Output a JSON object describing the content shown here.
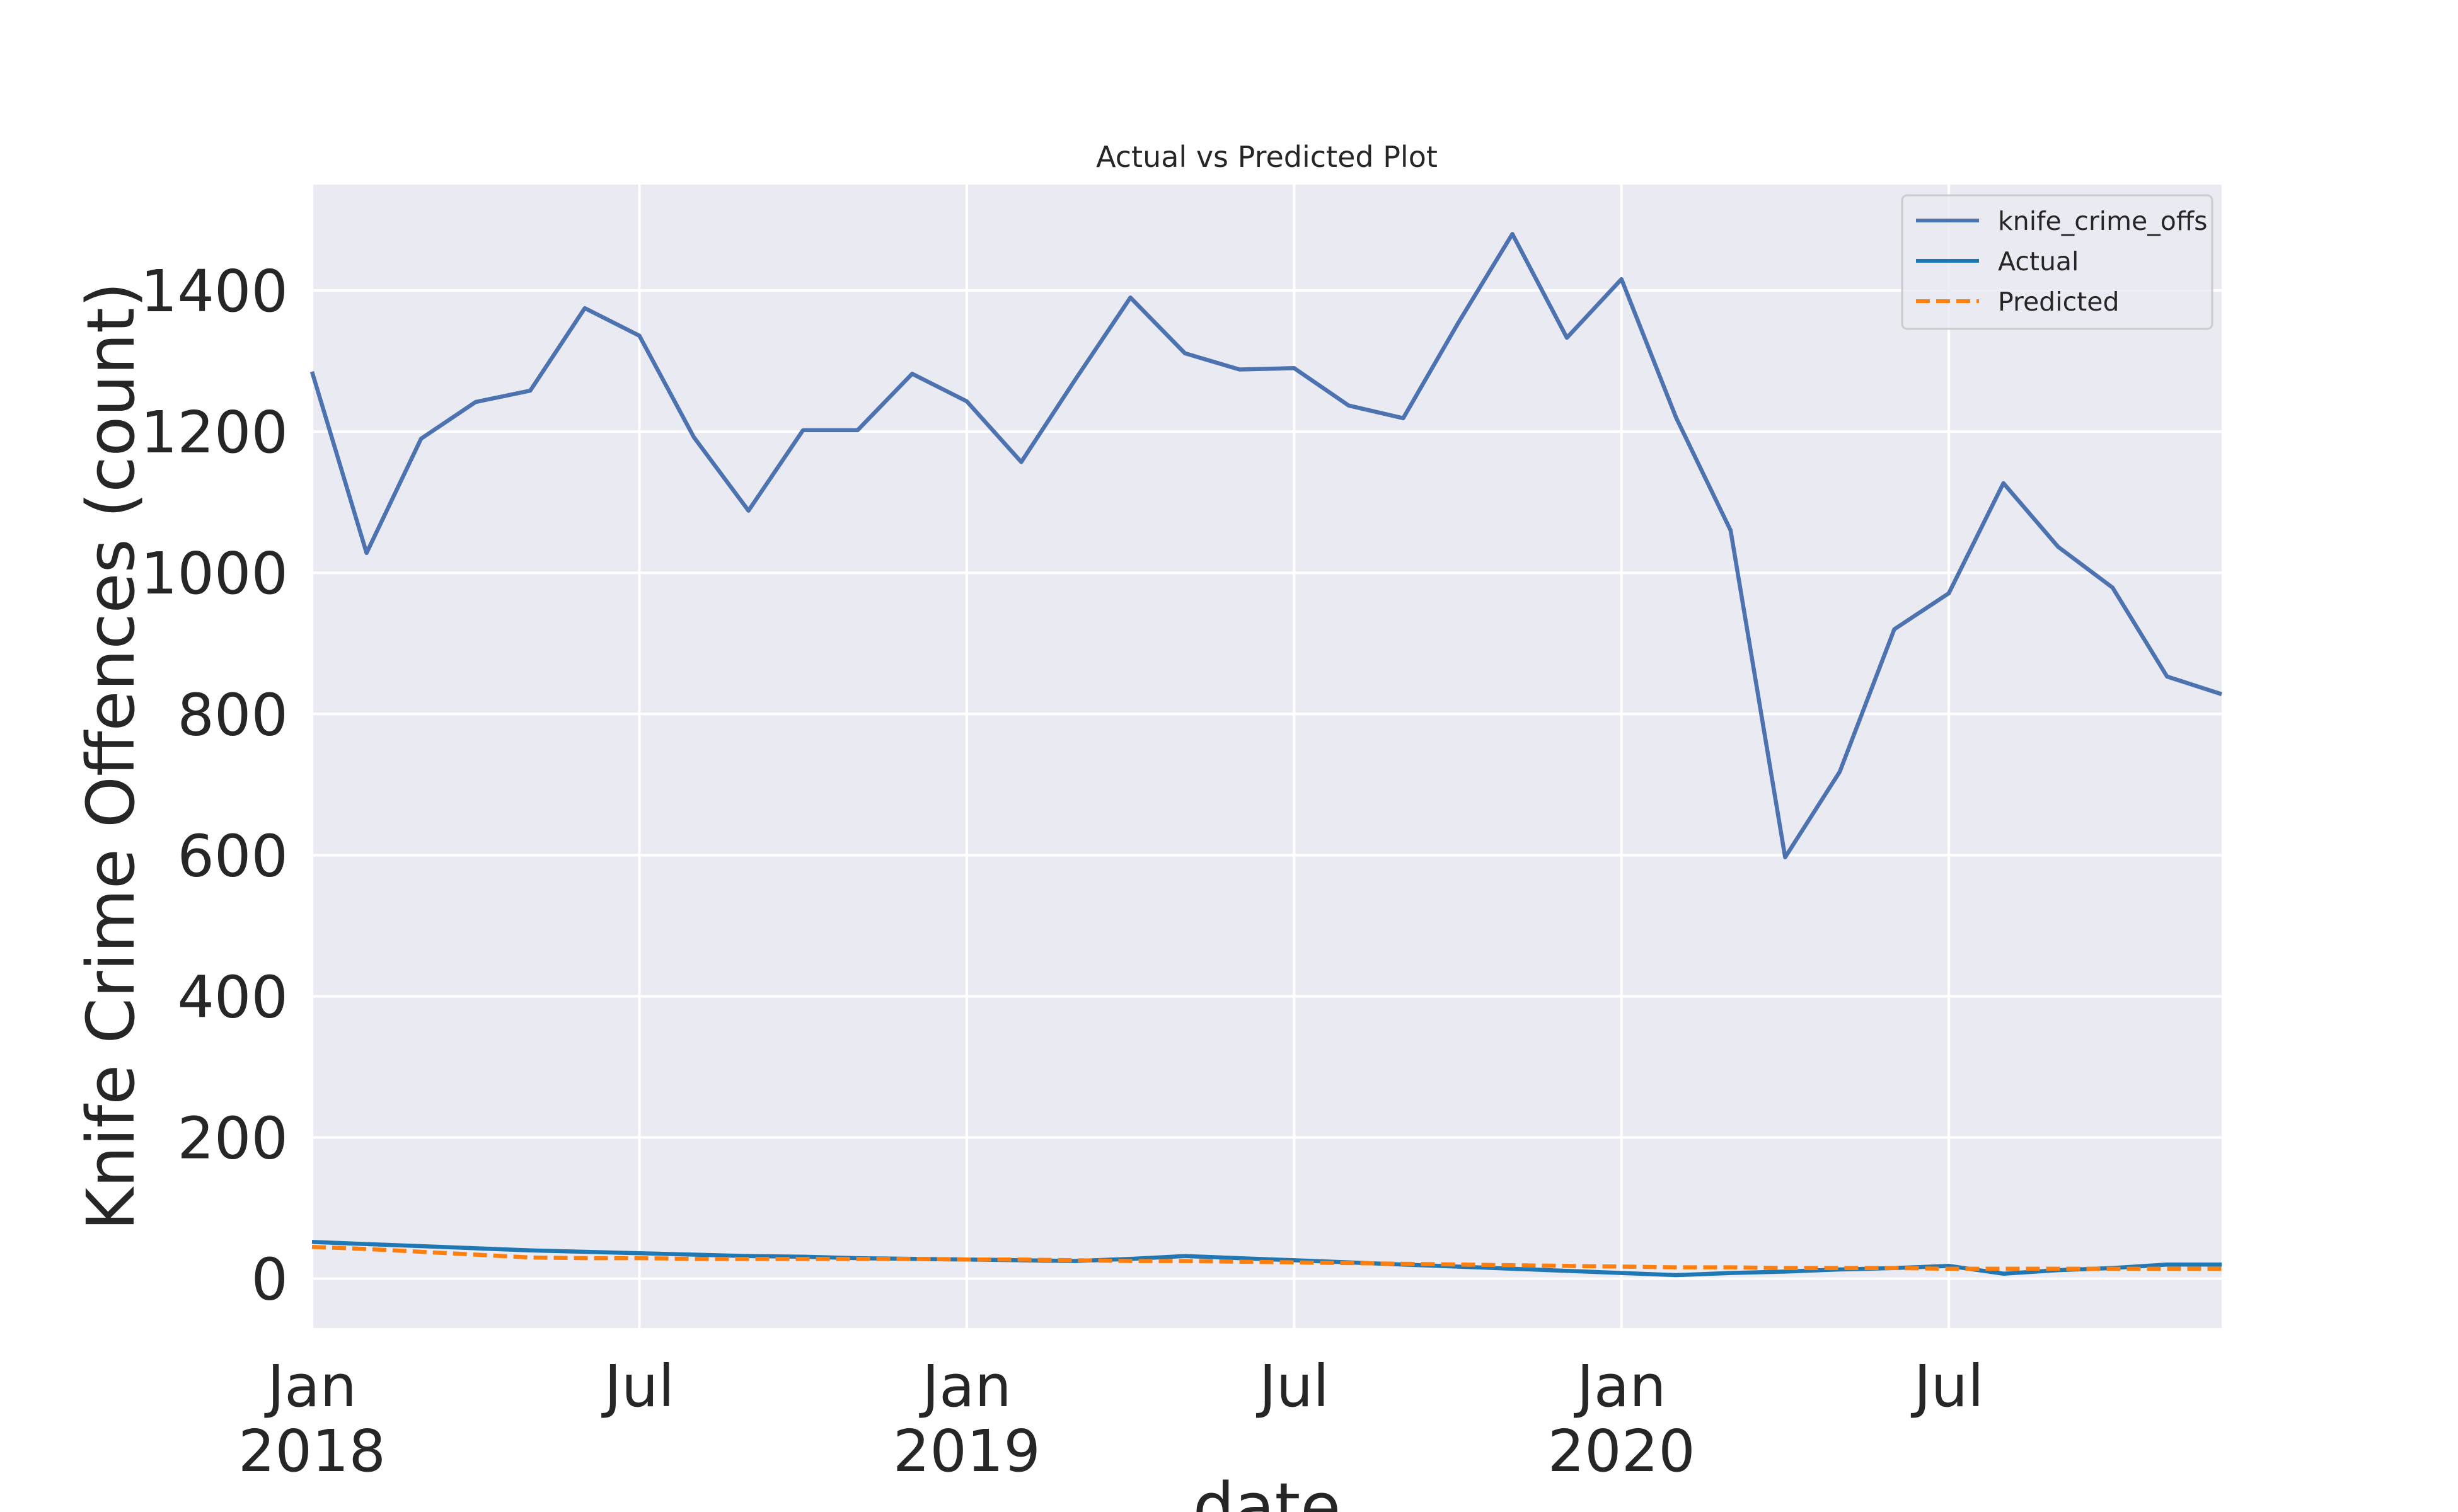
{
  "chart_data": {
    "type": "line",
    "title": "Actual vs Predicted Plot",
    "xlabel": "date",
    "ylabel": "Knife Crime Offences (count)",
    "grid": true,
    "legend_placement": "top-right",
    "ylim": [
      -70,
      1550
    ],
    "xlim": [
      "2018-01",
      "2020-12"
    ],
    "y_ticks": [
      0,
      200,
      400,
      600,
      800,
      1000,
      1200,
      1400
    ],
    "x_ticks": [
      {
        "date": "2018-01",
        "label_line1": "Jan",
        "label_line2": "2018"
      },
      {
        "date": "2018-07",
        "label_line1": "Jul",
        "label_line2": ""
      },
      {
        "date": "2019-01",
        "label_line1": "Jan",
        "label_line2": "2019"
      },
      {
        "date": "2019-07",
        "label_line1": "Jul",
        "label_line2": ""
      },
      {
        "date": "2020-01",
        "label_line1": "Jan",
        "label_line2": "2020"
      },
      {
        "date": "2020-07",
        "label_line1": "Jul",
        "label_line2": ""
      }
    ],
    "x": [
      "2018-01",
      "2018-02",
      "2018-03",
      "2018-04",
      "2018-05",
      "2018-06",
      "2018-07",
      "2018-08",
      "2018-09",
      "2018-10",
      "2018-11",
      "2018-12",
      "2019-01",
      "2019-02",
      "2019-03",
      "2019-04",
      "2019-05",
      "2019-06",
      "2019-07",
      "2019-08",
      "2019-09",
      "2019-10",
      "2019-11",
      "2019-12",
      "2020-01",
      "2020-02",
      "2020-03",
      "2020-04",
      "2020-05",
      "2020-06",
      "2020-07",
      "2020-08",
      "2020-09",
      "2020-10",
      "2020-11",
      "2020-12"
    ],
    "series": [
      {
        "name": "knife_crime_offs",
        "color": "#4c72b0",
        "dash": false,
        "values": [
          1285,
          1028,
          1190,
          1242,
          1258,
          1375,
          1336,
          1192,
          1088,
          1202,
          1202,
          1282,
          1243,
          1157,
          1275,
          1390,
          1311,
          1288,
          1290,
          1237,
          1219,
          1353,
          1480,
          1333,
          1416,
          1220,
          1060,
          597,
          718,
          920,
          971,
          1127,
          1037,
          979,
          853,
          828
        ]
      },
      {
        "name": "Actual",
        "color": "#1f77b4",
        "dash": false,
        "values": [
          52,
          49,
          46,
          43,
          40,
          38,
          36,
          34,
          32,
          31,
          29,
          28,
          27,
          26,
          25,
          28,
          32,
          29,
          26,
          23,
          20,
          17,
          14,
          11,
          8,
          5,
          8,
          10,
          13,
          15,
          18,
          7,
          12,
          15,
          20,
          20
        ]
      },
      {
        "name": "Predicted",
        "color": "#ff7f0e",
        "dash": true,
        "values": [
          45,
          42,
          38,
          34,
          30,
          29,
          29,
          28,
          28,
          28,
          28,
          28,
          27,
          27,
          26,
          25,
          25,
          24,
          23,
          22,
          21,
          20,
          19,
          18,
          17,
          16,
          16,
          15,
          15,
          15,
          14,
          14,
          14,
          14,
          14,
          14
        ]
      }
    ]
  }
}
